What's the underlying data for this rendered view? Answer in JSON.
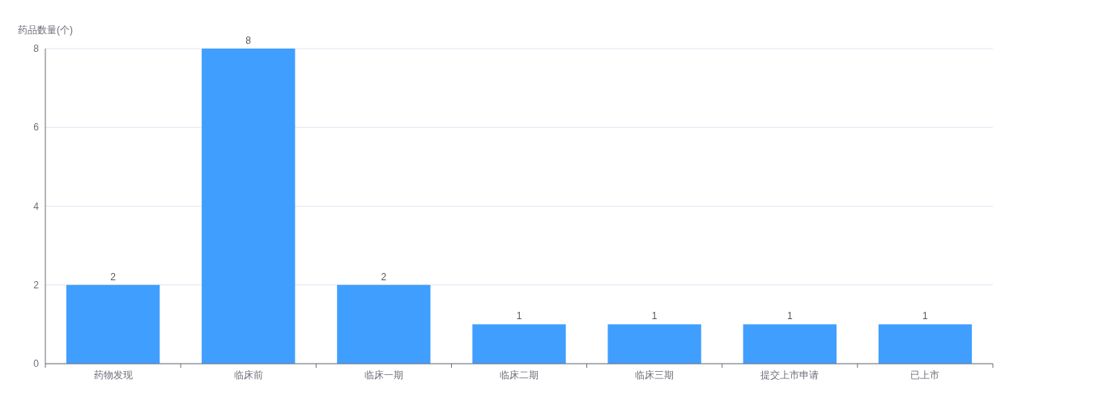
{
  "chart_data": {
    "type": "bar",
    "ylabel": "药品数量(个)",
    "categories": [
      "药物发现",
      "临床前",
      "临床一期",
      "临床二期",
      "临床三期",
      "提交上市申请",
      "已上市"
    ],
    "values": [
      2,
      8,
      2,
      1,
      1,
      1,
      1
    ],
    "color": "#409eff",
    "ylim": [
      0,
      8
    ],
    "yticks": [
      0,
      2,
      4,
      6,
      8
    ],
    "grid": "y",
    "data_labels": true
  }
}
